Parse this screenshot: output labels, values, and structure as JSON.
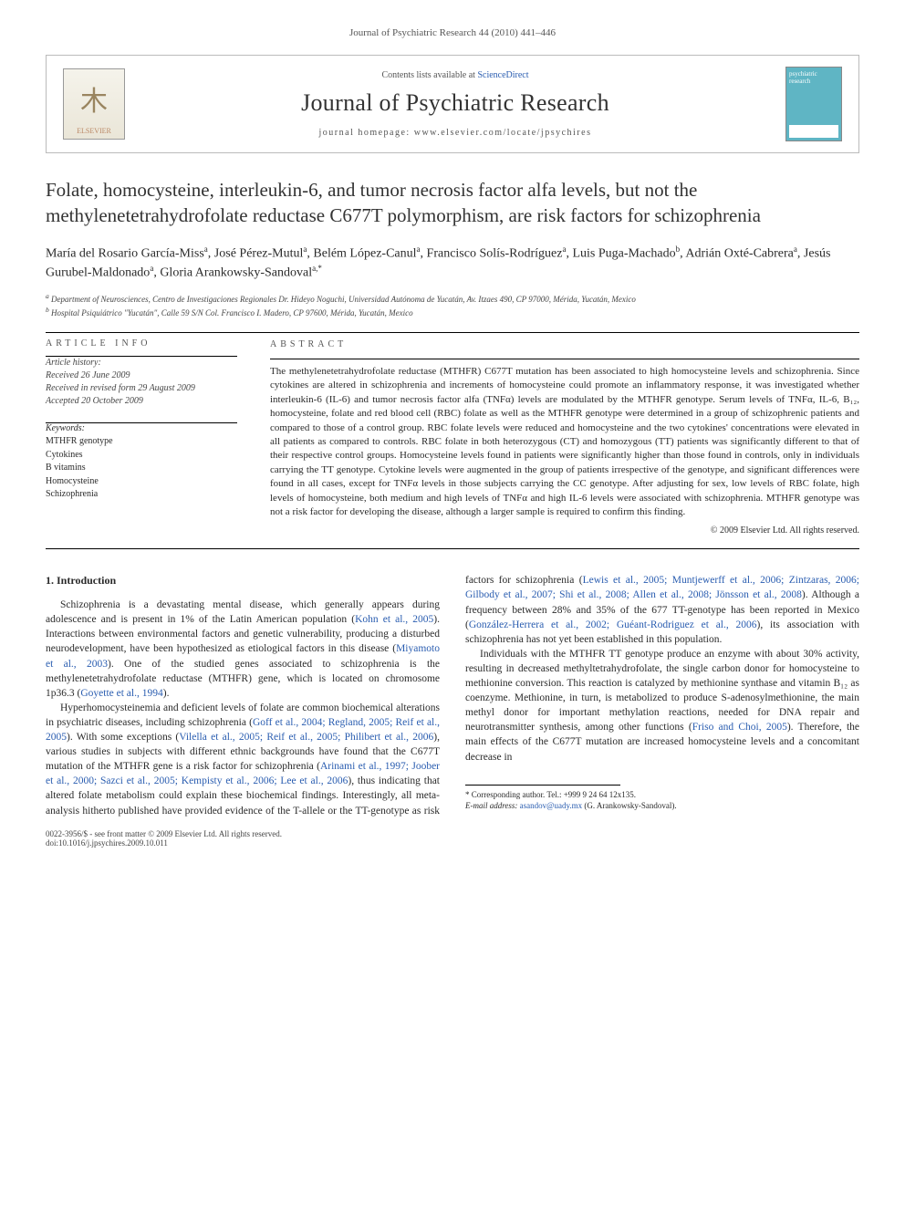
{
  "journal_ref": "Journal of Psychiatric Research 44 (2010) 441–446",
  "header": {
    "contents_prefix": "Contents lists available at ",
    "contents_link": "ScienceDirect",
    "journal_title": "Journal of Psychiatric Research",
    "homepage_prefix": "journal homepage: ",
    "homepage_url": "www.elsevier.com/locate/jpsychires",
    "publisher_logo_label": "ELSEVIER",
    "cover_label_top": "psychiatric",
    "cover_label_bottom": "research"
  },
  "article": {
    "title": "Folate, homocysteine, interleukin-6, and tumor necrosis factor alfa levels, but not the methylenetetrahydrofolate reductase C677T polymorphism, are risk factors for schizophrenia",
    "authors_html": "María del Rosario García-Miss<sup>a</sup>, José Pérez-Mutul<sup>a</sup>, Belém López-Canul<sup>a</sup>, Francisco Solís-Rodríguez<sup>a</sup>, Luis Puga-Machado<sup>b</sup>, Adrián Oxté-Cabrera<sup>a</sup>, Jesús Gurubel-Maldonado<sup>a</sup>, Gloria Arankowsky-Sandoval<sup>a,*</sup>",
    "affiliations": {
      "a": "Department of Neurosciences, Centro de Investigaciones Regionales Dr. Hideyo Noguchi, Universidad Autónoma de Yucatán, Av. Itzaes 490, CP 97000, Mérida, Yucatán, Mexico",
      "b": "Hospital Psiquiátrico \"Yucatán\", Calle 59 S/N Col. Francisco I. Madero, CP 97600, Mérida, Yucatán, Mexico"
    }
  },
  "info": {
    "heading": "ARTICLE INFO",
    "history_h": "Article history:",
    "received": "Received 26 June 2009",
    "revised": "Received in revised form 29 August 2009",
    "accepted": "Accepted 20 October 2009",
    "keywords_h": "Keywords:",
    "keywords": [
      "MTHFR genotype",
      "Cytokines",
      "B vitamins",
      "Homocysteine",
      "Schizophrenia"
    ]
  },
  "abstract": {
    "heading": "ABSTRACT",
    "text": "The methylenetetrahydrofolate reductase (MTHFR) C677T mutation has been associated to high homocysteine levels and schizophrenia. Since cytokines are altered in schizophrenia and increments of homocysteine could promote an inflammatory response, it was investigated whether interleukin-6 (IL-6) and tumor necrosis factor alfa (TNFα) levels are modulated by the MTHFR genotype. Serum levels of TNFα, IL-6, B₁₂, homocysteine, folate and red blood cell (RBC) folate as well as the MTHFR genotype were determined in a group of schizophrenic patients and compared to those of a control group. RBC folate levels were reduced and homocysteine and the two cytokines' concentrations were elevated in all patients as compared to controls. RBC folate in both heterozygous (CT) and homozygous (TT) patients was significantly different to that of their respective control groups. Homocysteine levels found in patients were significantly higher than those found in controls, only in individuals carrying the TT genotype. Cytokine levels were augmented in the group of patients irrespective of the genotype, and significant differences were found in all cases, except for TNFα levels in those subjects carrying the CC genotype. After adjusting for sex, low levels of RBC folate, high levels of homocysteine, both medium and high levels of TNFα and high IL-6 levels were associated with schizophrenia. MTHFR genotype was not a risk factor for developing the disease, although a larger sample is required to confirm this finding.",
    "copyright": "© 2009 Elsevier Ltd. All rights reserved."
  },
  "body": {
    "section_h": "1. Introduction",
    "p1_a": "Schizophrenia is a devastating mental disease, which generally appears during adolescence and is present in 1% of the Latin American population (",
    "p1_ref1": "Kohn et al., 2005",
    "p1_b": "). Interactions between environmental factors and genetic vulnerability, producing a disturbed neurodevelopment, have been hypothesized as etiological factors in this disease (",
    "p1_ref2": "Miyamoto et al., 2003",
    "p1_c": "). One of the studied genes associated to schizophrenia is the methylenetetrahydrofolate reductase (MTHFR) gene, which is located on chromosome 1p36.3 (",
    "p1_ref3": "Goyette et al., 1994",
    "p1_d": ").",
    "p2_a": "Hyperhomocysteinemia and deficient levels of folate are common biochemical alterations in psychiatric diseases, including schizophrenia (",
    "p2_ref1": "Goff et al., 2004; Regland, 2005; Reif et al., 2005",
    "p2_b": "). With some exceptions (",
    "p2_ref2": "Vilella et al., 2005; Reif et al., 2005; Philibert et al., 2006",
    "p2_c": "), various studies in subjects with different ethnic backgrounds have found that the C677T mutation of the MTHFR gene is a risk factor for schizophrenia (",
    "p2_ref3": "Arinami et al., 1997; Joober",
    "p2_ref3b": "et al., 2000; Sazci et al., 2005; Kempisty et al., 2006; Lee et al., 2006",
    "p2_d": "), thus indicating that altered folate metabolism could explain these biochemical findings. Interestingly, all meta-analysis hitherto published have provided evidence of the T-allele or the TT-genotype as risk factors for schizophrenia (",
    "p2_ref4": "Lewis et al., 2005; Muntjewerff et al., 2006; Zintzaras, 2006; Gilbody et al., 2007; Shi et al., 2008; Allen et al., 2008; Jönsson et al., 2008",
    "p2_e": "). Although a frequency between 28% and 35% of the 677 TT-genotype has been reported in Mexico (",
    "p2_ref5": "González-Herrera et al., 2002; Guéant-Rodriguez et al., 2006",
    "p2_f": "), its association with schizophrenia has not yet been established in this population.",
    "p3_a": "Individuals with the MTHFR TT genotype produce an enzyme with about 30% activity, resulting in decreased methyltetrahydrofolate, the single carbon donor for homocysteine to methionine conversion. This reaction is catalyzed by methionine synthase and vitamin B₁₂ as coenzyme. Methionine, in turn, is metabolized to produce S-adenosylmethionine, the main methyl donor for important methylation reactions, needed for DNA repair and neurotransmitter synthesis, among other functions (",
    "p3_ref1": "Friso and Choi, 2005",
    "p3_b": "). Therefore, the main effects of the C677T mutation are increased homocysteine levels and a concomitant decrease in"
  },
  "footer": {
    "corr": "* Corresponding author. Tel.: +999 9 24 64 12x135.",
    "email_label": "E-mail address: ",
    "email": "asandov@uady.mx",
    "email_tail": " (G. Arankowsky-Sandoval).",
    "issn": "0022-3956/$ - see front matter © 2009 Elsevier Ltd. All rights reserved.",
    "doi": "doi:10.1016/j.jpsychires.2009.10.011"
  },
  "colors": {
    "link": "#2a5db0",
    "text": "#2a2a2a",
    "cover_bg": "#5fb5c4"
  }
}
